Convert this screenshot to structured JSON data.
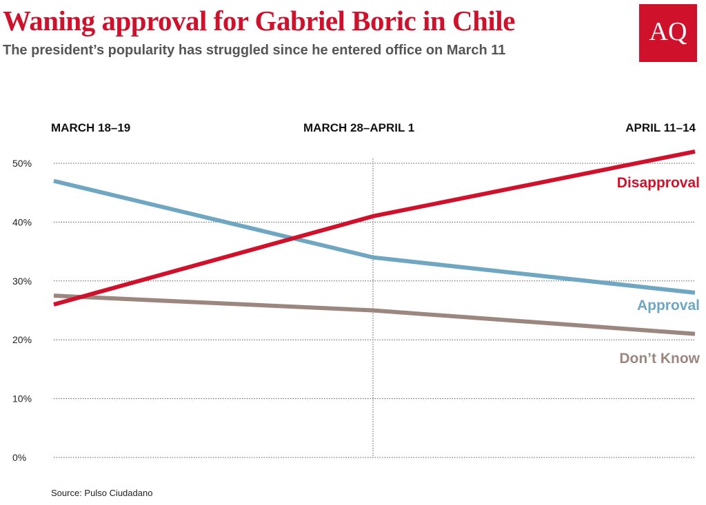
{
  "header": {
    "title": "Waning approval for Gabriel Boric in Chile",
    "subtitle": "The president’s popularity has struggled since he entered office on March 11",
    "logo_text": "AQ"
  },
  "source": "Source: Pulso Ciudadano",
  "colors": {
    "brand": "#d0112b",
    "disapproval": "#d0112b",
    "approval": "#6fa6c1",
    "dont_know": "#9c8680",
    "grid": "#555555"
  },
  "chart_data": {
    "type": "line",
    "categories": [
      "MARCH 18–19",
      "MARCH 28–APRIL 1",
      "APRIL 11–14"
    ],
    "series": [
      {
        "name": "Disapproval",
        "values": [
          26,
          41,
          52
        ]
      },
      {
        "name": "Approval",
        "values": [
          47,
          34,
          28
        ]
      },
      {
        "name": "Don’t Know",
        "values": [
          27.5,
          25,
          21
        ]
      }
    ],
    "yticks": [
      "0%",
      "10%",
      "20%",
      "30%",
      "40%",
      "50%"
    ],
    "ylim": [
      0,
      50
    ],
    "grid": true,
    "title": "Waning approval for Gabriel Boric in Chile",
    "xlabel": "",
    "ylabel": ""
  }
}
